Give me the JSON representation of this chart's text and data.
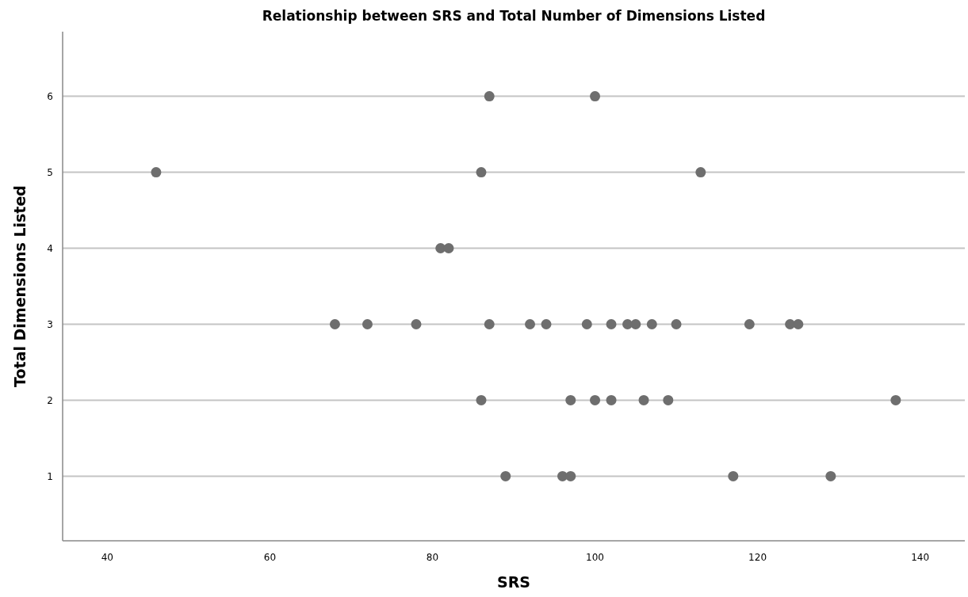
{
  "chart_data": {
    "type": "scatter",
    "title": "Relationship between SRS and Total Number of Dimensions Listed",
    "xlabel": "SRS",
    "ylabel": "Total Dimensions Listed",
    "x": [
      87,
      100,
      46,
      86,
      113,
      81,
      82,
      68,
      72,
      78,
      87,
      92,
      94,
      99,
      102,
      104,
      105,
      107,
      110,
      119,
      124,
      125,
      86,
      97,
      100,
      102,
      106,
      109,
      137,
      89,
      96,
      97,
      117,
      129
    ],
    "series": [
      {
        "color": "#6e6e6e",
        "values": [
          6,
          6,
          5,
          5,
          5,
          4,
          4,
          3,
          3,
          3,
          3,
          3,
          3,
          3,
          3,
          3,
          3,
          3,
          3,
          3,
          3,
          3,
          2,
          2,
          2,
          2,
          2,
          2,
          2,
          1,
          1,
          1,
          1,
          1
        ]
      }
    ],
    "xlim": [
      34.5,
      145.5
    ],
    "xticks": [
      40,
      60,
      80,
      100,
      120,
      140
    ],
    "ylim": [
      0.15,
      6.85
    ],
    "yticks": [
      1,
      2,
      3,
      4,
      5,
      6
    ],
    "grid": "y",
    "marker": "circle"
  }
}
